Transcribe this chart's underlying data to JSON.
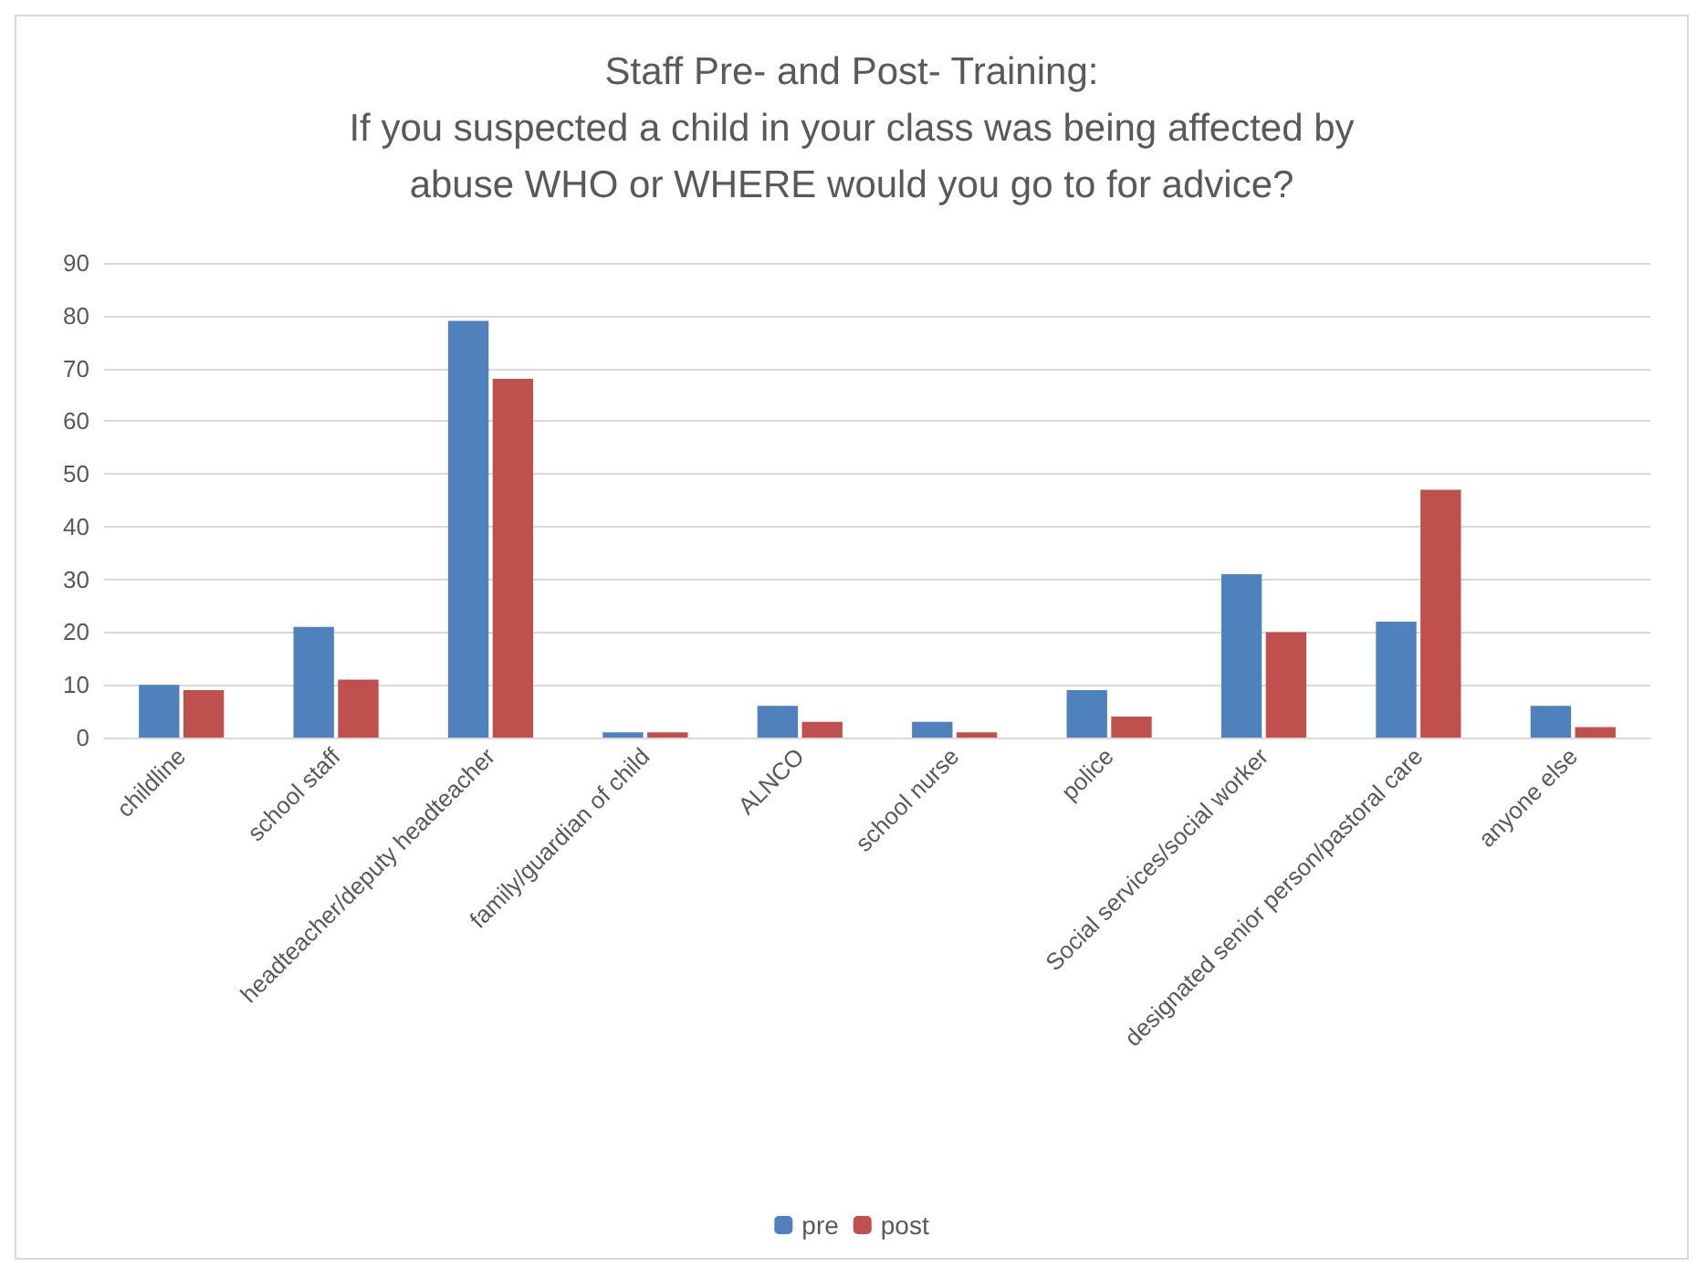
{
  "chart_data": {
    "type": "bar",
    "title": "Staff Pre- and Post- Training:\nIf you suspected a child in your class was being affected by\nabuse WHO or WHERE would you go to for advice?",
    "categories": [
      "childline",
      "school staff",
      "headteacher/deputy headteacher",
      "family/guardian of child",
      "ALNCO",
      "school nurse",
      "police",
      "Social services/social worker",
      "designated senior person/pastoral care",
      "anyone else"
    ],
    "series": [
      {
        "name": "pre",
        "color": "#4f81bd",
        "values": [
          10,
          21,
          79,
          1,
          6,
          3,
          9,
          31,
          22,
          6
        ]
      },
      {
        "name": "post",
        "color": "#c0504d",
        "values": [
          9,
          11,
          68,
          1,
          3,
          1,
          4,
          20,
          47,
          2
        ]
      }
    ],
    "ylim": [
      0,
      90
    ],
    "yticks": [
      0,
      10,
      20,
      30,
      40,
      50,
      60,
      70,
      80,
      90
    ],
    "grid": "y",
    "legend": "bottom"
  }
}
